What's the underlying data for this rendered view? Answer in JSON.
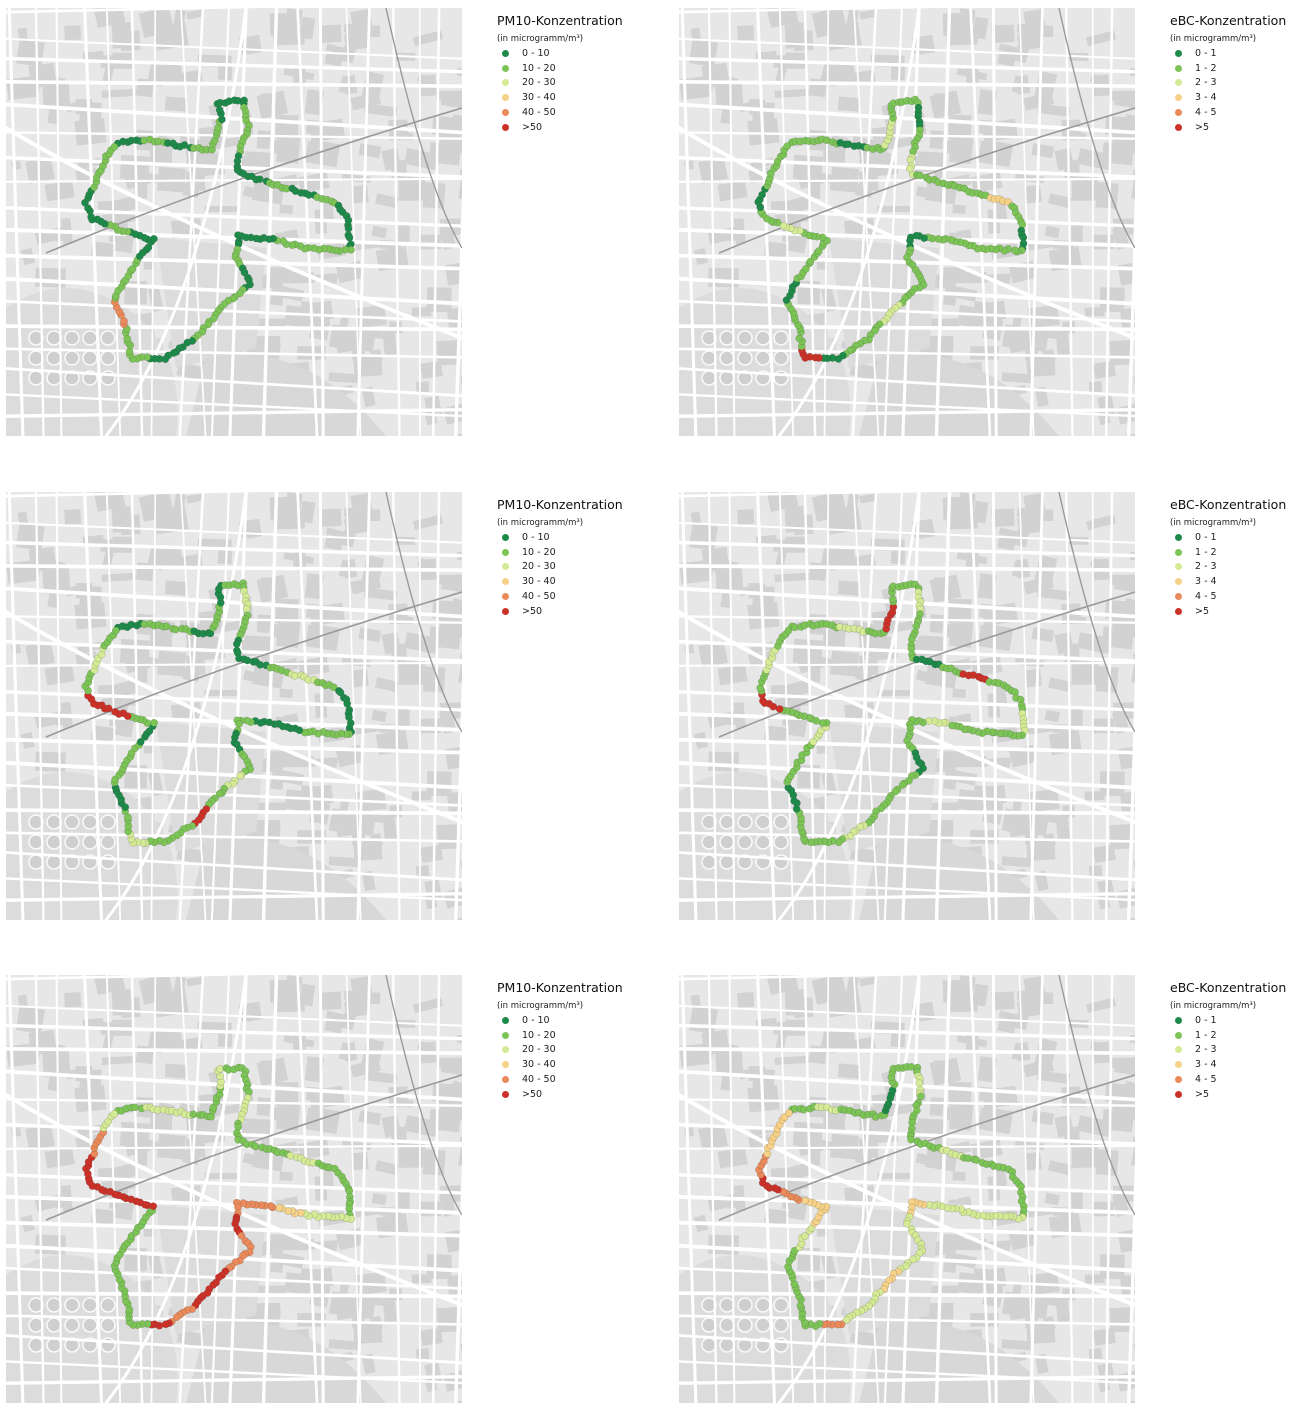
{
  "colors": {
    "classes": [
      "#1e8a4a",
      "#7cc456",
      "#d4ea95",
      "#f6d188",
      "#ea8a5a",
      "#cc3128"
    ],
    "map_bg": "#e7e7e7",
    "street": "#ffffff",
    "block": "#d2d2d2",
    "park": "#dcdcdc",
    "rail": "#9a9a9a"
  },
  "panels": [
    {
      "id": "pm10-1",
      "legend": {
        "title": "PM10-Konzentration",
        "unit": "(in microgramm/m³)",
        "items": [
          "0 - 10",
          "10 - 20",
          "20 - 30",
          "30 - 40",
          "40 - 50",
          ">50"
        ]
      },
      "profile": [
        0,
        1,
        0,
        1,
        1,
        0,
        0,
        1,
        1,
        0,
        0,
        1,
        0,
        1,
        0,
        0,
        1,
        1,
        1,
        0,
        0,
        1,
        0,
        1,
        1,
        1,
        0,
        0,
        1,
        1,
        4,
        1,
        1,
        0,
        0,
        1,
        0,
        0,
        1,
        1
      ]
    },
    {
      "id": "ebc-1",
      "legend": {
        "title": "eBC-Konzentration",
        "unit": "(in microgramm/m³)",
        "items": [
          "0 - 1",
          "1 - 2",
          "2 - 3",
          "3 - 4",
          "4 - 5",
          ">5"
        ]
      },
      "profile": [
        1,
        1,
        0,
        1,
        2,
        1,
        1,
        0,
        1,
        2,
        1,
        1,
        1,
        3,
        1,
        0,
        1,
        1,
        1,
        1,
        0,
        1,
        1,
        1,
        2,
        1,
        1,
        0,
        5,
        1,
        1,
        0,
        1,
        1,
        1,
        2,
        1,
        0,
        1,
        1
      ]
    },
    {
      "id": "pm10-2",
      "legend": {
        "title": "PM10-Konzentration",
        "unit": "(in microgramm/m³)",
        "items": [
          "0 - 10",
          "10 - 20",
          "20 - 30",
          "30 - 40",
          "40 - 50",
          ">50"
        ]
      },
      "profile": [
        0,
        1,
        1,
        0,
        1,
        0,
        1,
        2,
        1,
        0,
        0,
        1,
        2,
        1,
        0,
        0,
        1,
        1,
        0,
        0,
        1,
        0,
        1,
        2,
        1,
        5,
        1,
        1,
        2,
        1,
        0,
        1,
        1,
        0,
        1,
        5,
        5,
        1,
        2,
        1
      ]
    },
    {
      "id": "ebc-2",
      "legend": {
        "title": "eBC-Konzentration",
        "unit": "(in microgramm/m³)",
        "items": [
          "0 - 1",
          "1 - 2",
          "2 - 3",
          "3 - 4",
          "4 - 5",
          ">5"
        ]
      },
      "profile": [
        1,
        1,
        2,
        1,
        5,
        1,
        1,
        2,
        1,
        1,
        0,
        1,
        5,
        1,
        1,
        2,
        1,
        1,
        1,
        2,
        1,
        1,
        0,
        1,
        1,
        1,
        2,
        1,
        1,
        1,
        0,
        1,
        1,
        2,
        1,
        1,
        5,
        1,
        2,
        1
      ]
    },
    {
      "id": "pm10-3",
      "legend": {
        "title": "PM10-Konzentration",
        "unit": "(in microgramm/m³)",
        "items": [
          "0 - 10",
          "10 - 20",
          "20 - 30",
          "30 - 40",
          "40 - 50",
          ">50"
        ]
      },
      "profile": [
        1,
        2,
        2,
        1,
        1,
        2,
        1,
        1,
        2,
        1,
        1,
        1,
        2,
        1,
        1,
        1,
        2,
        2,
        3,
        4,
        4,
        5,
        4,
        4,
        5,
        5,
        4,
        5,
        1,
        1,
        1,
        1,
        1,
        1,
        5,
        5,
        5,
        5,
        4,
        2
      ]
    },
    {
      "id": "ebc-3",
      "legend": {
        "title": "eBC-Konzentration",
        "unit": "(in microgramm/m³)",
        "items": [
          "0 - 1",
          "1 - 2",
          "2 - 3",
          "3 - 4",
          "4 - 5",
          ">5"
        ]
      },
      "profile": [
        1,
        2,
        1,
        1,
        0,
        1,
        1,
        2,
        1,
        1,
        1,
        2,
        1,
        1,
        1,
        1,
        2,
        2,
        2,
        2,
        3,
        2,
        2,
        2,
        3,
        2,
        2,
        4,
        1,
        1,
        1,
        1,
        2,
        3,
        3,
        4,
        5,
        4,
        3,
        3
      ]
    }
  ]
}
